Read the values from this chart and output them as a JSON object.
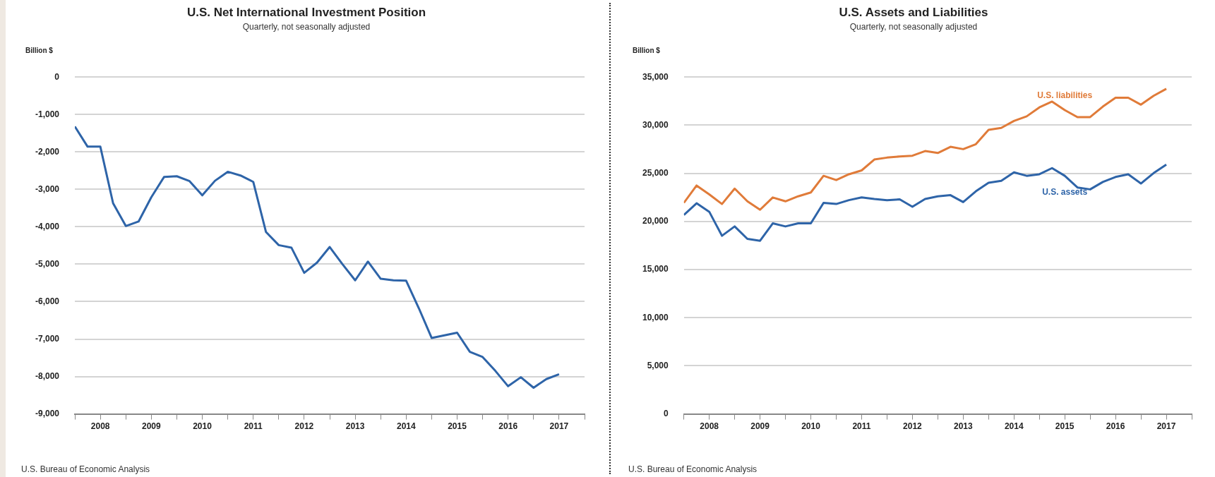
{
  "chart_data": [
    {
      "type": "line",
      "title": "U.S. Net International Investment Position",
      "subtitle": "Quarterly, not seasonally adjusted",
      "ylabel": "Billion $",
      "x": [
        2008,
        2008.25,
        2008.5,
        2008.75,
        2009,
        2009.25,
        2009.5,
        2009.75,
        2010,
        2010.25,
        2010.5,
        2010.75,
        2011,
        2011.25,
        2011.5,
        2011.75,
        2012,
        2012.25,
        2012.5,
        2012.75,
        2013,
        2013.25,
        2013.5,
        2013.75,
        2014,
        2014.25,
        2014.5,
        2014.75,
        2015,
        2015.25,
        2015.5,
        2015.75,
        2016,
        2016.25,
        2016.5,
        2016.75,
        2017,
        2017.25,
        2017.5
      ],
      "series": [
        {
          "color": "#2e64a8",
          "values": [
            -1320,
            -1860,
            -1860,
            -3370,
            -3980,
            -3860,
            -3210,
            -2670,
            -2650,
            -2780,
            -3160,
            -2770,
            -2530,
            -2630,
            -2800,
            -4140,
            -4490,
            -4560,
            -5230,
            -4960,
            -4540,
            -5000,
            -5430,
            -4930,
            -5390,
            -5430,
            -5440,
            -6180,
            -6970,
            -6900,
            -6830,
            -7340,
            -7480,
            -7850,
            -8260,
            -8020,
            -8300,
            -8070,
            -7940
          ]
        }
      ],
      "xlim": [
        2008,
        2018
      ],
      "xticks": [
        {
          "value": 2008,
          "label": null
        },
        {
          "value": 2008.5,
          "label": "2008"
        },
        {
          "value": 2009,
          "label": null
        },
        {
          "value": 2009.5,
          "label": "2009"
        },
        {
          "value": 2010,
          "label": null
        },
        {
          "value": 2010.5,
          "label": "2010"
        },
        {
          "value": 2011,
          "label": null
        },
        {
          "value": 2011.5,
          "label": "2011"
        },
        {
          "value": 2012,
          "label": null
        },
        {
          "value": 2012.5,
          "label": "2012"
        },
        {
          "value": 2013,
          "label": null
        },
        {
          "value": 2013.5,
          "label": "2013"
        },
        {
          "value": 2014,
          "label": null
        },
        {
          "value": 2014.5,
          "label": "2014"
        },
        {
          "value": 2015,
          "label": null
        },
        {
          "value": 2015.5,
          "label": "2015"
        },
        {
          "value": 2016,
          "label": null
        },
        {
          "value": 2016.5,
          "label": "2016"
        },
        {
          "value": 2017,
          "label": null
        },
        {
          "value": 2017.5,
          "label": "2017"
        },
        {
          "value": 2018,
          "label": null
        }
      ],
      "ylim": [
        -9000,
        0
      ],
      "yticks": [
        {
          "value": 0,
          "label": "0"
        },
        {
          "value": -1000,
          "label": "-1,000"
        },
        {
          "value": -2000,
          "label": "-2,000"
        },
        {
          "value": -3000,
          "label": "-3,000"
        },
        {
          "value": -4000,
          "label": "-4,000"
        },
        {
          "value": -5000,
          "label": "-5,000"
        },
        {
          "value": -6000,
          "label": "-6,000"
        },
        {
          "value": -7000,
          "label": "-7,000"
        },
        {
          "value": -8000,
          "label": "-8,000"
        },
        {
          "value": -9000,
          "label": "-9,000"
        }
      ],
      "grid": "y",
      "legend": false,
      "marker": "none",
      "line_style": "solid",
      "annotations": [
        "U.S. Bureau of Economic Analysis"
      ]
    },
    {
      "type": "line",
      "title": "U.S. Assets and Liabilities",
      "subtitle": "Quarterly, not seasonally adjusted",
      "ylabel": "Billion $",
      "x": [
        2008,
        2008.25,
        2008.5,
        2008.75,
        2009,
        2009.25,
        2009.5,
        2009.75,
        2010,
        2010.25,
        2010.5,
        2010.75,
        2011,
        2011.25,
        2011.5,
        2011.75,
        2012,
        2012.25,
        2012.5,
        2012.75,
        2013,
        2013.25,
        2013.5,
        2013.75,
        2014,
        2014.25,
        2014.5,
        2014.75,
        2015,
        2015.25,
        2015.5,
        2015.75,
        2016,
        2016.25,
        2016.5,
        2016.75,
        2017,
        2017.25,
        2017.5
      ],
      "series": [
        {
          "name": "U.S. liabilities",
          "color": "#e07b39",
          "values": [
            21930,
            23730,
            22810,
            21810,
            23410,
            22090,
            21210,
            22490,
            22090,
            22610,
            23010,
            24740,
            24300,
            24900,
            25300,
            26430,
            26630,
            26750,
            26830,
            27310,
            27110,
            27750,
            27510,
            28030,
            29520,
            29720,
            30440,
            30920,
            31850,
            32450,
            31570,
            30840,
            30840,
            31930,
            32850,
            32850,
            32130,
            33050,
            33780
          ]
        },
        {
          "name": "U.S. assets",
          "color": "#2e64a8",
          "values": [
            20680,
            21890,
            21000,
            18510,
            19480,
            18190,
            17990,
            19800,
            19480,
            19800,
            19800,
            21930,
            21810,
            22210,
            22490,
            22330,
            22210,
            22290,
            21530,
            22330,
            22610,
            22730,
            22010,
            23130,
            24020,
            24220,
            25100,
            24740,
            24900,
            25540,
            24740,
            23530,
            23330,
            24100,
            24620,
            24900,
            23940,
            25020,
            25900
          ]
        }
      ],
      "xlim": [
        2008,
        2018
      ],
      "xticks": [
        {
          "value": 2008,
          "label": null
        },
        {
          "value": 2008.5,
          "label": "2008"
        },
        {
          "value": 2009,
          "label": null
        },
        {
          "value": 2009.5,
          "label": "2009"
        },
        {
          "value": 2010,
          "label": null
        },
        {
          "value": 2010.5,
          "label": "2010"
        },
        {
          "value": 2011,
          "label": null
        },
        {
          "value": 2011.5,
          "label": "2011"
        },
        {
          "value": 2012,
          "label": null
        },
        {
          "value": 2012.5,
          "label": "2012"
        },
        {
          "value": 2013,
          "label": null
        },
        {
          "value": 2013.5,
          "label": "2013"
        },
        {
          "value": 2014,
          "label": null
        },
        {
          "value": 2014.5,
          "label": "2014"
        },
        {
          "value": 2015,
          "label": null
        },
        {
          "value": 2015.5,
          "label": "2015"
        },
        {
          "value": 2016,
          "label": null
        },
        {
          "value": 2016.5,
          "label": "2016"
        },
        {
          "value": 2017,
          "label": null
        },
        {
          "value": 2017.5,
          "label": "2017"
        },
        {
          "value": 2018,
          "label": null
        }
      ],
      "ylim": [
        0,
        35000
      ],
      "yticks": [
        {
          "value": 0,
          "label": "0"
        },
        {
          "value": 5000,
          "label": "5,000"
        },
        {
          "value": 10000,
          "label": "10,000"
        },
        {
          "value": 15000,
          "label": "15,000"
        },
        {
          "value": 20000,
          "label": "20,000"
        },
        {
          "value": 25000,
          "label": "25,000"
        },
        {
          "value": 30000,
          "label": "30,000"
        },
        {
          "value": 35000,
          "label": "35,000"
        }
      ],
      "grid": "y",
      "legend": false,
      "marker": "none",
      "line_style": "solid",
      "annotations": [
        "U.S. Bureau of Economic Analysis"
      ]
    }
  ]
}
